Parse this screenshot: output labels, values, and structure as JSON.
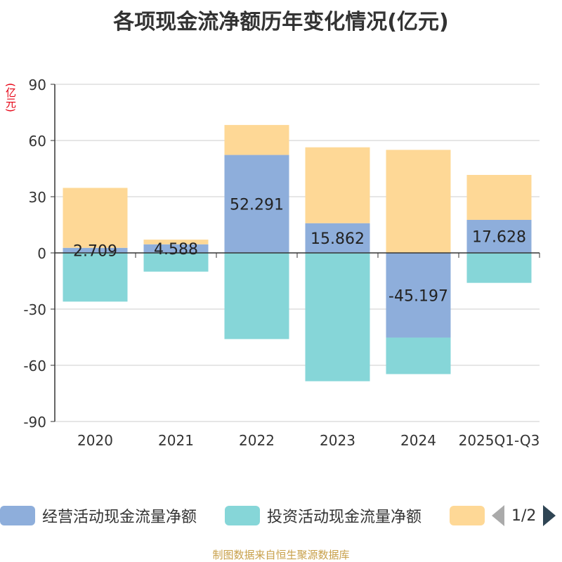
{
  "title": "各项现金流净额历年变化情况(亿元)",
  "unit": "(亿元)",
  "source": "制图数据来自恒生聚源数据库",
  "pager": {
    "text": "1/2"
  },
  "colors": {
    "operating": "#8eaedb",
    "investing": "#86d6d8",
    "financing": "#fed896"
  },
  "chart_data": {
    "type": "bar",
    "stacked": true,
    "title": "各项现金流净额历年变化情况(亿元)",
    "ylabel": "(亿元)",
    "ylim": [
      -90,
      90
    ],
    "yticks": [
      -90,
      -60,
      -30,
      0,
      30,
      60,
      90
    ],
    "categories": [
      "2020",
      "2021",
      "2022",
      "2023",
      "2024",
      "2025Q1-Q3"
    ],
    "series": [
      {
        "name": "经营活动现金流量净额",
        "values": [
          2.709,
          4.588,
          52.291,
          15.862,
          -45.197,
          17.628
        ],
        "labels": [
          "2.709",
          "4.588",
          "52.291",
          "15.862",
          "-45.197",
          "17.628"
        ]
      },
      {
        "name": "投资活动现金流量净额",
        "values": [
          -26,
          -10,
          -46,
          -68.5,
          -19.5,
          -16
        ]
      },
      {
        "name": "",
        "values": [
          32,
          2.5,
          16,
          40.5,
          55,
          24
        ]
      }
    ],
    "legend_position": "bottom"
  }
}
